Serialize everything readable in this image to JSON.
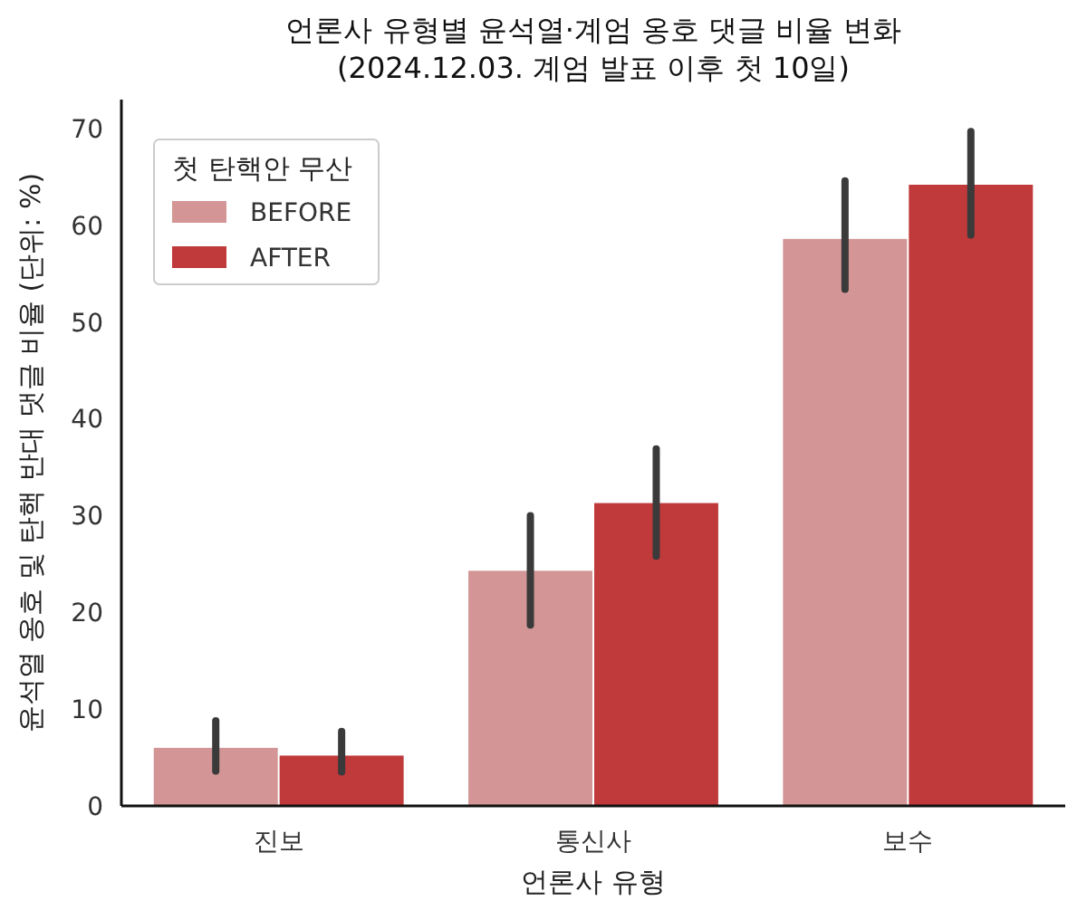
{
  "chart_data": {
    "type": "bar",
    "title": "언론사 유형별 윤석열·계엄 옹호 댓글 비율 변화\n(2024.12.03. 계엄 발표 이후 첫 10일)",
    "xlabel": "언론사 유형",
    "ylabel": "윤석열 옹호 및 탄핵 반대 댓글 비율 (단위: %)",
    "legend_title": "첫 탄핵안 무산",
    "categories": [
      "진보",
      "통신사",
      "보수"
    ],
    "series": [
      {
        "name": "BEFORE",
        "color": "#d39595",
        "values": [
          6.0,
          24.3,
          58.6
        ],
        "errors": [
          [
            3.6,
            8.8
          ],
          [
            18.7,
            30
          ],
          [
            53.4,
            64.6
          ]
        ]
      },
      {
        "name": "AFTER",
        "color": "#c0393b",
        "values": [
          5.2,
          31.3,
          64.2
        ],
        "errors": [
          [
            3.5,
            7.7
          ],
          [
            25.8,
            36.9
          ],
          [
            59,
            69.7
          ]
        ]
      }
    ],
    "ylim": [
      0,
      73
    ],
    "yticks": [
      0,
      10,
      20,
      30,
      40,
      50,
      60,
      70
    ],
    "grid": false,
    "legend": "top left"
  }
}
